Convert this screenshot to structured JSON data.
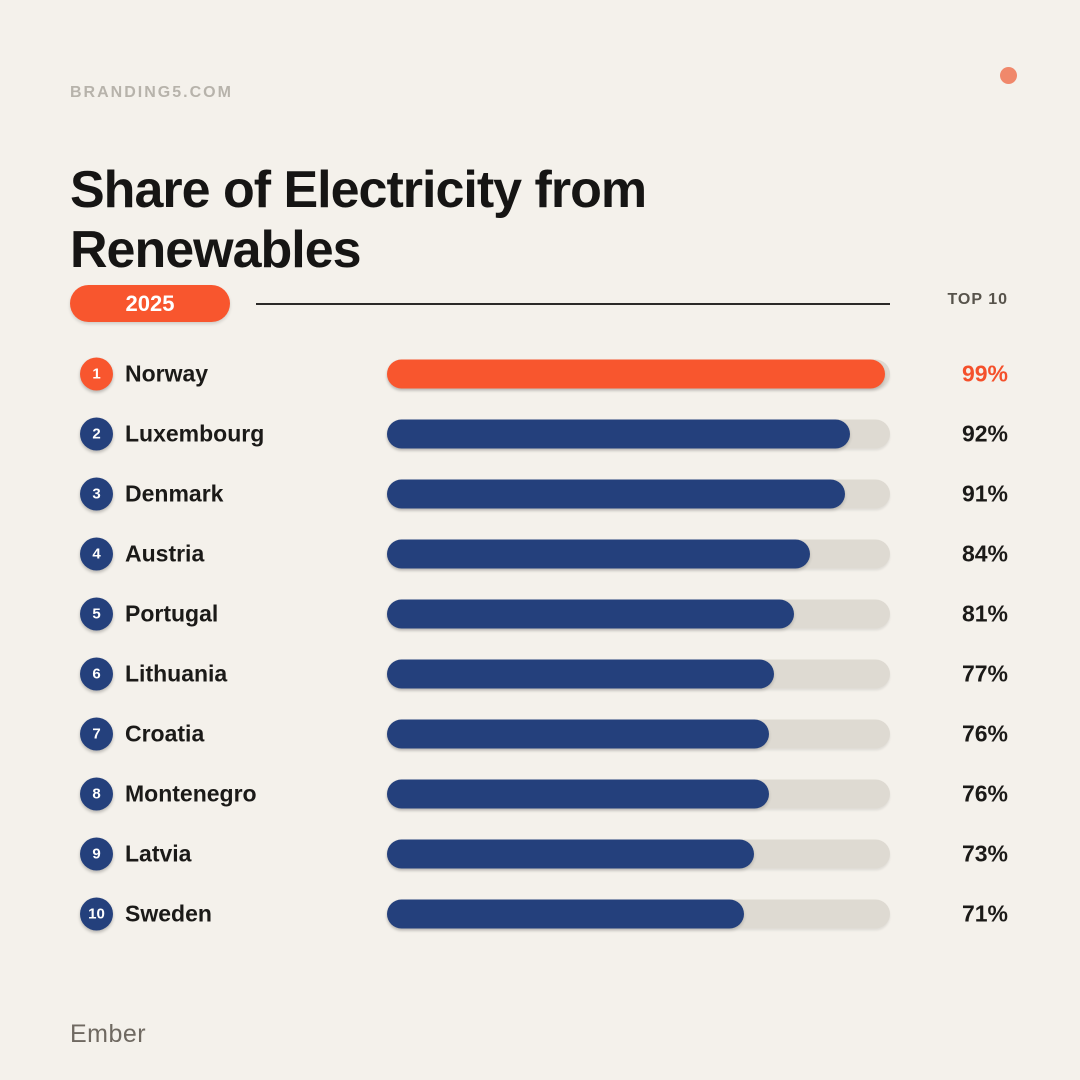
{
  "page": {
    "brand": "BRANDING5.COM",
    "source": "Ember"
  },
  "header": {
    "title_line1": "Share of Electricity from",
    "title_line2": "Renewables",
    "year_badge": "2025",
    "top_label": "TOP 10"
  },
  "colors": {
    "background": "#F4F1EB",
    "accent_orange": "#F8562E",
    "navy": "#24407C",
    "track": "#DEDAD2",
    "corner_dot": "#F0886B",
    "value_text": "#1B1A18",
    "highlight_value_text": "#F4502B"
  },
  "chart_data": {
    "type": "bar",
    "orientation": "horizontal",
    "title": "Share of Electricity from Renewables",
    "year": "2025",
    "unit": "%",
    "xlim": [
      0,
      100
    ],
    "grid": false,
    "legend": false,
    "categories": [
      "Norway",
      "Luxembourg",
      "Denmark",
      "Austria",
      "Portugal",
      "Lithuania",
      "Croatia",
      "Montenegro",
      "Latvia",
      "Sweden"
    ],
    "values": [
      99,
      92,
      91,
      84,
      81,
      77,
      76,
      76,
      73,
      71
    ],
    "ranks": [
      1,
      2,
      3,
      4,
      5,
      6,
      7,
      8,
      9,
      10
    ],
    "highlight_index": 0
  }
}
